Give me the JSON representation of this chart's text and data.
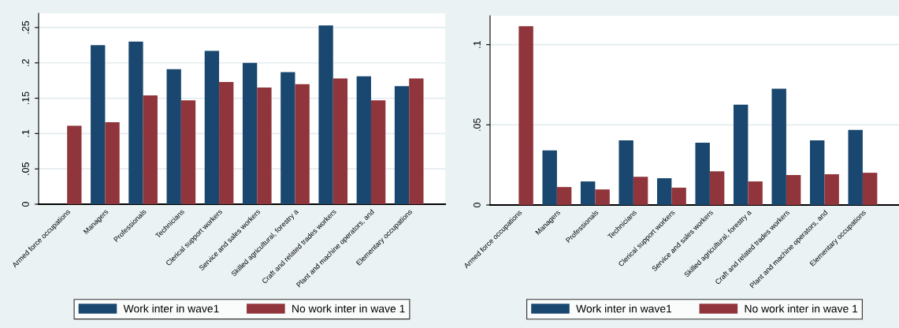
{
  "chart_data": [
    {
      "type": "bar",
      "categories": [
        "Armed force occupations",
        "Managers",
        "Professionals",
        "Technicians",
        "Clerical support workers",
        "Service and sales workers",
        "Skilled agricultural, forestry a",
        "Craft and related trades workers",
        "Plant and machine operators, and",
        "Elementary occupations"
      ],
      "series": [
        {
          "name": "Work inter in wave1",
          "color": "#1a476f",
          "values": [
            null,
            0.225,
            0.23,
            0.191,
            0.217,
            0.2,
            0.187,
            0.253,
            0.181,
            0.167
          ]
        },
        {
          "name": "No work inter in wave 1",
          "color": "#90353b",
          "values": [
            0.111,
            0.116,
            0.154,
            0.147,
            0.173,
            0.165,
            0.17,
            0.178,
            0.147,
            0.178
          ]
        }
      ],
      "ylim": [
        0,
        0.27
      ],
      "yticks": [
        {
          "value": 0,
          "label": "0"
        },
        {
          "value": 0.05,
          "label": ".05"
        },
        {
          "value": 0.1,
          "label": ".1"
        },
        {
          "value": 0.15,
          "label": ".15"
        },
        {
          "value": 0.2,
          "label": ".2"
        },
        {
          "value": 0.25,
          "label": ".25"
        }
      ],
      "grid": "y",
      "legend": "bottom"
    },
    {
      "type": "bar",
      "categories": [
        "Armed force occupations",
        "Managers",
        "Professionals",
        "Technicians",
        "Clerical support workers",
        "Service and sales workers",
        "Skilled agricultural, forestry a",
        "Craft and related trades workers",
        "Plant and machine operators, and",
        "Elementary occupations"
      ],
      "series": [
        {
          "name": "Work inter in wave1",
          "color": "#1a476f",
          "values": [
            null,
            0.034,
            0.0147,
            0.0403,
            0.0167,
            0.0388,
            0.0626,
            0.0725,
            0.0403,
            0.0468
          ]
        },
        {
          "name": "No work inter in wave 1",
          "color": "#90353b",
          "values": [
            0.1115,
            0.0112,
            0.0097,
            0.0176,
            0.0108,
            0.021,
            0.0147,
            0.0187,
            0.0192,
            0.0201
          ]
        }
      ],
      "ylim": [
        0,
        0.118
      ],
      "yticks": [
        {
          "value": 0,
          "label": "0"
        },
        {
          "value": 0.05,
          "label": ".05"
        },
        {
          "value": 0.1,
          "label": ".1"
        }
      ],
      "grid": "y",
      "legend": "bottom"
    }
  ]
}
